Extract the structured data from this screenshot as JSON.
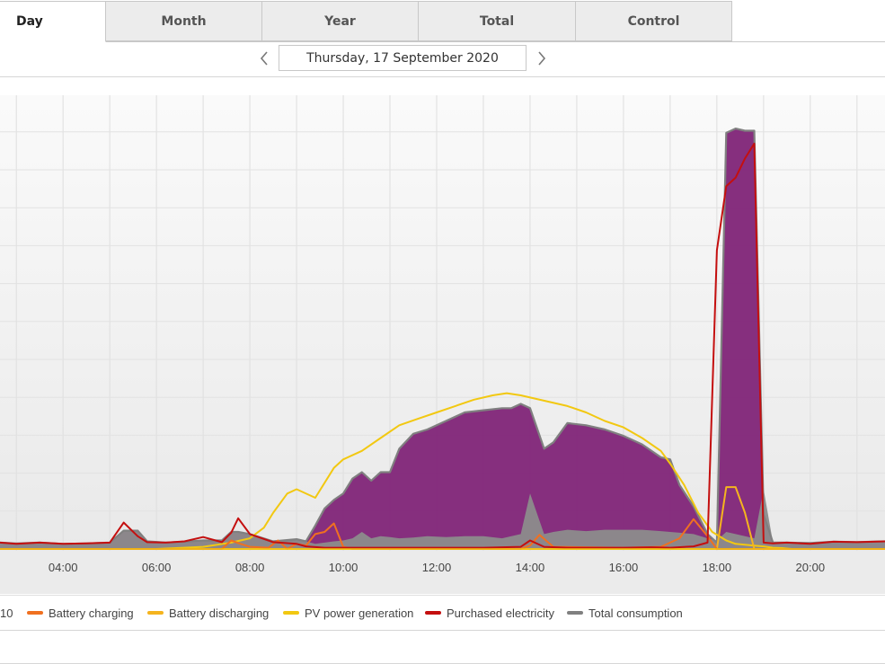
{
  "tabs": [
    {
      "label": "Day",
      "active": true
    },
    {
      "label": "Month",
      "active": false
    },
    {
      "label": "Year",
      "active": false
    },
    {
      "label": "Total",
      "active": false
    },
    {
      "label": "Control",
      "active": false
    }
  ],
  "date_nav": {
    "date": "Thursday, 17 September 2020",
    "prev_icon": "chevron-left-icon",
    "next_icon": "chevron-right-icon"
  },
  "legend": {
    "cut_item": "10",
    "items": [
      {
        "label": "Battery charging",
        "color": "#f07020"
      },
      {
        "label": "Battery discharging",
        "color": "#f5b41e"
      },
      {
        "label": "PV power generation",
        "color": "#f2c811"
      },
      {
        "label": "Purchased electricity",
        "color": "#c40f0f"
      },
      {
        "label": "Total consumption",
        "color": "#808080"
      }
    ]
  },
  "colors": {
    "pv_self_consumption": "#82287a",
    "grid_background": "#f6f6f6"
  },
  "chart_data": {
    "type": "area",
    "x_unit": "hour of day",
    "x_ticks": [
      "04:00",
      "06:00",
      "08:00",
      "10:00",
      "12:00",
      "14:00",
      "16:00",
      "18:00",
      "20:00"
    ],
    "x_range": [
      2.65,
      21.6
    ],
    "y_range": [
      0,
      1
    ],
    "y_note": "y-axis labels not visible in screenshot; values are relative",
    "series": [
      {
        "name": "Total consumption",
        "x": [
          2.65,
          3.0,
          3.5,
          4.0,
          4.5,
          5.0,
          5.3,
          5.6,
          5.8,
          6.2,
          6.6,
          7.0,
          7.4,
          7.6,
          7.75,
          8.0,
          8.5,
          9.0,
          9.2,
          9.4,
          9.6,
          9.8,
          10.0,
          10.2,
          10.4,
          10.6,
          10.8,
          11.0,
          11.2,
          11.5,
          11.8,
          12.2,
          12.6,
          13.0,
          13.4,
          13.6,
          13.8,
          14.0,
          14.3,
          14.5,
          14.8,
          15.2,
          15.6,
          16.0,
          16.4,
          16.8,
          17.0,
          17.2,
          17.5,
          17.8,
          18.0,
          18.2,
          18.4,
          18.6,
          18.8,
          19.0,
          19.2,
          19.5,
          20.0,
          20.5,
          21.0,
          21.6
        ],
        "values": [
          0.015,
          0.013,
          0.015,
          0.012,
          0.013,
          0.015,
          0.043,
          0.043,
          0.018,
          0.015,
          0.017,
          0.02,
          0.02,
          0.04,
          0.04,
          0.035,
          0.018,
          0.023,
          0.018,
          0.055,
          0.095,
          0.115,
          0.13,
          0.165,
          0.18,
          0.16,
          0.18,
          0.18,
          0.235,
          0.27,
          0.28,
          0.3,
          0.32,
          0.325,
          0.33,
          0.33,
          0.34,
          0.33,
          0.235,
          0.25,
          0.295,
          0.29,
          0.28,
          0.265,
          0.245,
          0.215,
          0.21,
          0.15,
          0.1,
          0.035,
          0.015,
          0.975,
          0.985,
          0.98,
          0.98,
          0.08,
          0.015,
          0.015,
          0.014,
          0.017,
          0.016,
          0.018
        ]
      },
      {
        "name": "Purchased electricity",
        "x": [
          2.65,
          3.0,
          3.5,
          4.0,
          4.5,
          5.0,
          5.3,
          5.6,
          5.8,
          6.2,
          6.6,
          7.0,
          7.4,
          7.6,
          7.75,
          8.0,
          8.5,
          9.0,
          9.2,
          9.6,
          10.0,
          11.0,
          12.0,
          13.0,
          13.8,
          14.0,
          14.3,
          14.8,
          15.2,
          16.0,
          16.6,
          17.0,
          17.5,
          17.8,
          18.0,
          18.2,
          18.4,
          18.6,
          18.8,
          19.0,
          19.2,
          19.5,
          20.0,
          20.5,
          21.0,
          21.6
        ],
        "values": [
          0.015,
          0.012,
          0.015,
          0.012,
          0.013,
          0.015,
          0.062,
          0.03,
          0.016,
          0.015,
          0.018,
          0.028,
          0.016,
          0.038,
          0.072,
          0.035,
          0.016,
          0.012,
          0.006,
          0.003,
          0.003,
          0.003,
          0.003,
          0.003,
          0.005,
          0.02,
          0.005,
          0.003,
          0.003,
          0.003,
          0.004,
          0.003,
          0.006,
          0.015,
          0.7,
          0.85,
          0.87,
          0.915,
          0.95,
          0.015,
          0.013,
          0.015,
          0.012,
          0.017,
          0.016,
          0.018
        ]
      },
      {
        "name": "PV power generation",
        "x": [
          2.65,
          6.0,
          7.0,
          7.6,
          8.0,
          8.3,
          8.5,
          8.8,
          9.0,
          9.4,
          9.8,
          10.0,
          10.4,
          10.8,
          11.2,
          11.6,
          12.0,
          12.4,
          12.8,
          13.2,
          13.5,
          13.8,
          14.0,
          14.4,
          14.8,
          15.2,
          15.6,
          16.0,
          16.4,
          16.8,
          17.0,
          17.3,
          17.6,
          17.9,
          18.2,
          18.4,
          18.6,
          18.8,
          19.0,
          19.2,
          19.4,
          19.6,
          21.6
        ],
        "values": [
          0,
          0,
          0.005,
          0.015,
          0.025,
          0.05,
          0.085,
          0.13,
          0.14,
          0.12,
          0.19,
          0.21,
          0.23,
          0.26,
          0.29,
          0.305,
          0.32,
          0.335,
          0.35,
          0.36,
          0.365,
          0.36,
          0.355,
          0.345,
          0.335,
          0.32,
          0.3,
          0.285,
          0.26,
          0.23,
          0.2,
          0.15,
          0.085,
          0.04,
          0.02,
          0.012,
          0.01,
          0.008,
          0.006,
          0.003,
          0.002,
          0.0,
          0.0
        ]
      },
      {
        "name": "Battery charging",
        "x": [
          2.65,
          7.4,
          7.6,
          7.8,
          8.0,
          8.4,
          8.6,
          8.8,
          9.0,
          9.2,
          9.4,
          9.6,
          9.8,
          10.0,
          10.2,
          13.8,
          14.0,
          14.2,
          14.5,
          16.0,
          16.8,
          17.2,
          17.5,
          17.8,
          18.0,
          21.6
        ],
        "values": [
          0,
          0,
          0.02,
          0.012,
          0.005,
          0.003,
          0.02,
          0.0,
          0.012,
          0.008,
          0.035,
          0.04,
          0.06,
          0.005,
          0.0,
          0.0,
          0.008,
          0.033,
          0.005,
          0.003,
          0.005,
          0.025,
          0.07,
          0.03,
          0.0,
          0.0
        ]
      },
      {
        "name": "Battery discharging",
        "x": [
          2.65,
          17.8,
          18.0,
          18.2,
          18.4,
          18.6,
          18.8,
          19.0,
          19.2,
          21.6
        ],
        "values": [
          0,
          0,
          0.0,
          0.145,
          0.145,
          0.085,
          0.0,
          0.0,
          0.0,
          0.0
        ]
      }
    ],
    "area_series": {
      "name": "",
      "x": [
        2.65,
        3.0,
        3.5,
        4.0,
        4.5,
        5.0,
        5.3,
        5.6,
        5.8,
        6.2,
        6.6,
        7.0,
        7.4,
        7.6,
        7.75,
        8.0,
        8.5,
        9.0,
        9.2,
        9.4,
        9.6,
        9.8,
        10.0,
        10.2,
        10.4,
        10.6,
        10.8,
        11.0,
        11.2,
        11.5,
        11.8,
        12.2,
        12.6,
        13.0,
        13.4,
        13.6,
        13.8,
        14.0,
        14.3,
        14.5,
        14.8,
        15.2,
        15.6,
        16.0,
        16.4,
        16.8,
        17.0,
        17.2,
        17.5,
        17.8,
        18.0,
        18.2,
        18.4,
        18.6,
        18.8,
        19.0,
        19.2,
        19.5,
        20.0,
        20.5,
        21.0,
        21.6
      ],
      "gray_values": [
        0.015,
        0.013,
        0.015,
        0.012,
        0.013,
        0.015,
        0.043,
        0.043,
        0.018,
        0.015,
        0.017,
        0.02,
        0.02,
        0.04,
        0.04,
        0.035,
        0.018,
        0.023,
        0.018,
        0.012,
        0.015,
        0.018,
        0.02,
        0.025,
        0.04,
        0.025,
        0.03,
        0.028,
        0.025,
        0.027,
        0.03,
        0.028,
        0.03,
        0.03,
        0.025,
        0.03,
        0.035,
        0.13,
        0.035,
        0.04,
        0.045,
        0.042,
        0.045,
        0.045,
        0.045,
        0.042,
        0.04,
        0.038,
        0.035,
        0.025,
        0.02,
        0.04,
        0.035,
        0.03,
        0.025,
        0.14,
        0.015,
        0.015,
        0.014,
        0.017,
        0.016,
        0.018
      ]
    }
  }
}
